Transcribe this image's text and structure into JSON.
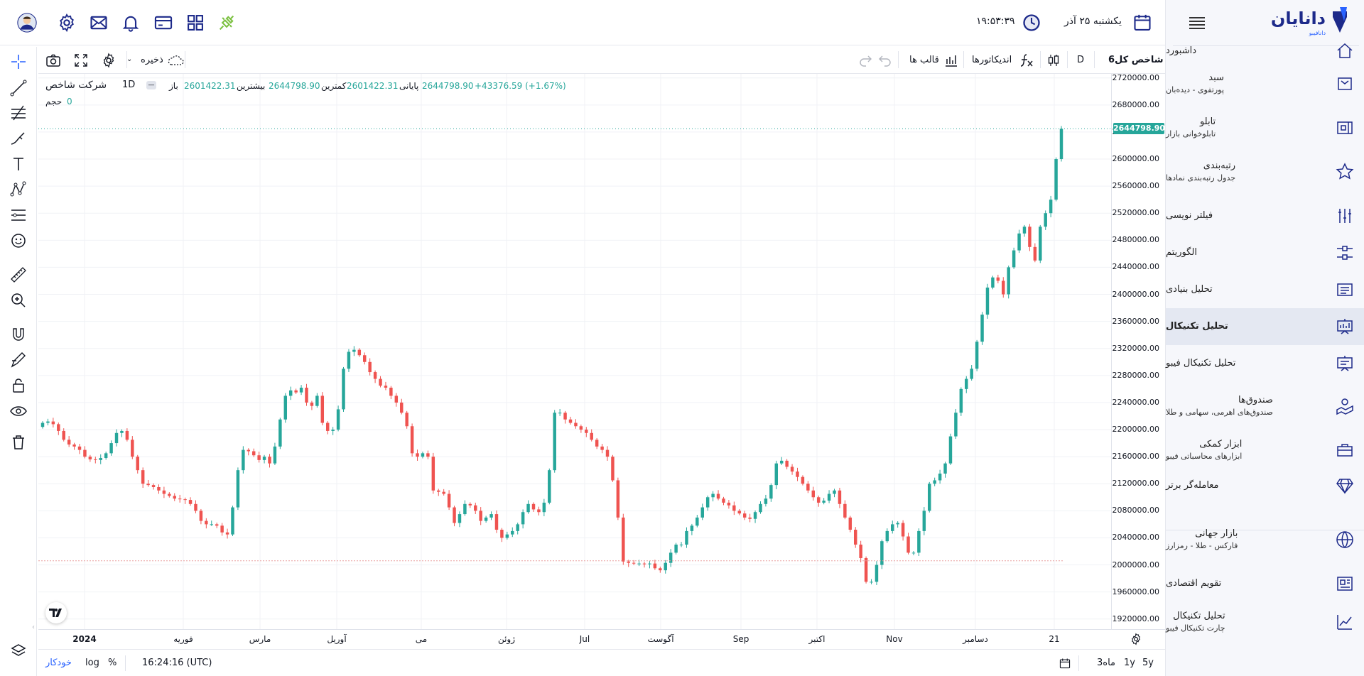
{
  "colors": {
    "up": "#26a69a",
    "down": "#ef5350",
    "accent": "#2962ff",
    "brand": "#1d2a8a"
  },
  "header": {
    "date": "یکشنبه ۲۵ آذر",
    "time": "۱۹:۵۳:۳۹",
    "icons": [
      "calendar-icon",
      "clock-icon",
      "plug-icon",
      "apps-icon",
      "card-icon",
      "bell-icon",
      "mail-icon",
      "settings-icon",
      "avatar"
    ]
  },
  "sidebar": {
    "logo": "دانایان",
    "logo_sub": "دانافیبو",
    "items": [
      {
        "title": "داشبورد",
        "sub": "",
        "icon": "home-icon"
      },
      {
        "title": "سبد",
        "sub": "پورتفوی - دیده‌بان",
        "icon": "basket-icon"
      },
      {
        "title": "تابلو",
        "sub": "تابلوخوانی بازار",
        "icon": "board-icon"
      },
      {
        "title": "رتبه‌بندی",
        "sub": "جدول رتبه‌بندی نمادها",
        "icon": "star-icon"
      },
      {
        "title": "فیلتر نویسی",
        "sub": "",
        "icon": "filter-icon"
      },
      {
        "title": "الگوریتم",
        "sub": "",
        "icon": "algorithm-icon"
      },
      {
        "title": "تحلیل بنیادی",
        "sub": "",
        "icon": "fundamental-icon"
      },
      {
        "title": "تحلیل تکنیکال",
        "sub": "",
        "icon": "technical-icon"
      },
      {
        "title": "تحلیل تکنیکال فیبو",
        "sub": "",
        "icon": "presentation-icon"
      },
      {
        "title": "صندوق‌ها",
        "sub": "صندوق‌های اهرمی، سهامی و طلا",
        "icon": "fund-icon"
      },
      {
        "title": "ابزار کمکی",
        "sub": "ابزارهای محاسباتی فیبو",
        "icon": "briefcase-icon"
      },
      {
        "title": "معامله‌گر برتر",
        "sub": "",
        "icon": "diamond-icon"
      },
      {
        "title": "بازار جهانی",
        "sub": "فارکس - طلا - رمزارز",
        "icon": "globe-icon"
      },
      {
        "title": "تقویم اقتصادی",
        "sub": "",
        "icon": "newspaper-icon"
      },
      {
        "title": "تحلیل تکنیکال",
        "sub": "چارت تکنیکال فیبو",
        "icon": "chart-icon"
      }
    ]
  },
  "toolbar": {
    "symbol": "شاخص کل6",
    "interval": "D",
    "indicators": "اندیکاتورها",
    "templates": "قالب ها",
    "save": "ذخیره"
  },
  "legend": {
    "name": "شرکت شاخص",
    "interval": "1D",
    "open_label": "باز",
    "open": "2601422.31",
    "high_label": "بیشترین",
    "high": "2644798.90",
    "low_label": "کمترین",
    "low": "2601422.31",
    "close_label": "پایانی",
    "close": "2644798.90",
    "change": "+43376.59 (+1.67%)",
    "volume_label": "حجم",
    "volume": "0"
  },
  "price_tag": "2644798.90",
  "bottom": {
    "ranges": [
      "5y",
      "1y",
      "3ماه"
    ],
    "clock": "16:24:16 (UTC)",
    "pct": "%",
    "log": "log",
    "auto": "خودکار"
  },
  "chart_data": {
    "type": "candlestick",
    "x_ticks": [
      "2024",
      "فوریه",
      "مارس",
      "آوریل",
      "می",
      "ژوئن",
      "Jul",
      "آگوست",
      "Sep",
      "اکتبر",
      "Nov",
      "دسامبر",
      "21"
    ],
    "y_ticks": [
      2720000,
      2680000,
      2640000,
      2600000,
      2560000,
      2520000,
      2480000,
      2440000,
      2400000,
      2360000,
      2320000,
      2280000,
      2240000,
      2200000,
      2160000,
      2120000,
      2080000,
      2040000,
      2000000,
      1960000,
      1920000
    ],
    "ylim": [
      1905000,
      2726000
    ],
    "last_price": 2644798.9,
    "close_path": [
      2210000,
      2212000,
      2208000,
      2198000,
      2185000,
      2178000,
      2175000,
      2170000,
      2160000,
      2156000,
      2155000,
      2158000,
      2165000,
      2180000,
      2195000,
      2198000,
      2185000,
      2160000,
      2140000,
      2120000,
      2118000,
      2115000,
      2110000,
      2105000,
      2102000,
      2098000,
      2097000,
      2096000,
      2090000,
      2080000,
      2065000,
      2060000,
      2060000,
      2058000,
      2048000,
      2045000,
      2085000,
      2140000,
      2170000,
      2168000,
      2162000,
      2155000,
      2160000,
      2150000,
      2175000,
      2215000,
      2250000,
      2258000,
      2255000,
      2262000,
      2240000,
      2235000,
      2250000,
      2210000,
      2198000,
      2200000,
      2230000,
      2290000,
      2315000,
      2318000,
      2310000,
      2300000,
      2285000,
      2275000,
      2265000,
      2262000,
      2250000,
      2240000,
      2225000,
      2205000,
      2165000,
      2160000,
      2165000,
      2160000,
      2110000,
      2108000,
      2105000,
      2085000,
      2062000,
      2075000,
      2090000,
      2088000,
      2080000,
      2065000,
      2070000,
      2075000,
      2052000,
      2040000,
      2045000,
      2050000,
      2060000,
      2078000,
      2090000,
      2082000,
      2078000,
      2092000,
      2140000,
      2225000,
      2225000,
      2215000,
      2210000,
      2205000,
      2200000,
      2195000,
      2185000,
      2175000,
      2170000,
      2160000,
      2125000,
      2070000,
      2005000,
      2003000,
      2002000,
      2002000,
      2001000,
      2002000,
      1995000,
      1992000,
      2003000,
      2018000,
      2030000,
      2030000,
      2050000,
      2058000,
      2070000,
      2085000,
      2100000,
      2105000,
      2098000,
      2092000,
      2088000,
      2080000,
      2076000,
      2070000,
      2068000,
      2078000,
      2090000,
      2098000,
      2118000,
      2150000,
      2154000,
      2145000,
      2138000,
      2130000,
      2120000,
      2110000,
      2100000,
      2092000,
      2095000,
      2105000,
      2110000,
      2090000,
      2070000,
      2052000,
      2030000,
      2010000,
      1975000,
      1975000,
      2000000,
      2035000,
      2050000,
      2060000,
      2062000,
      2042000,
      2018000,
      2018000,
      2050000,
      2080000,
      2120000,
      2125000,
      2135000,
      2150000,
      2190000,
      2225000,
      2260000,
      2275000,
      2290000,
      2330000,
      2370000,
      2410000,
      2425000,
      2420000,
      2400000,
      2440000,
      2465000,
      2490000,
      2500000,
      2470000,
      2450000,
      2500000,
      2520000,
      2540000,
      2600000,
      2644798.9
    ]
  }
}
